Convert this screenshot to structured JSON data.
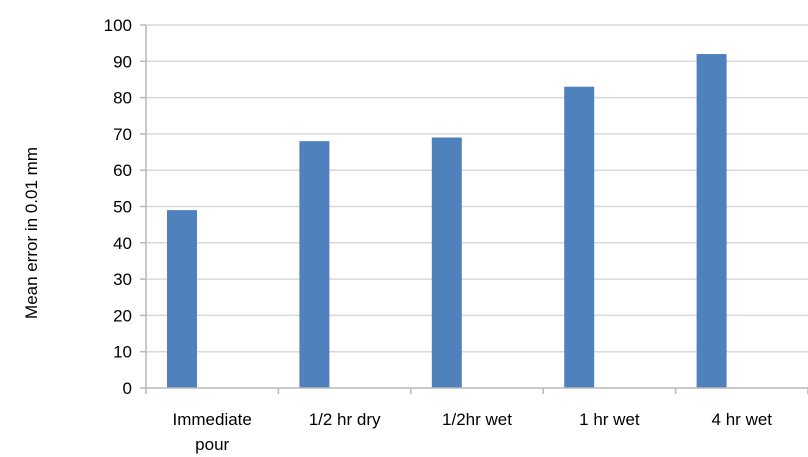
{
  "chart_data": {
    "type": "bar",
    "title": "",
    "xlabel": "",
    "ylabel": "Mean error in 0.01 mm",
    "ylim": [
      0,
      100
    ],
    "yticks": [
      0,
      10,
      20,
      30,
      40,
      50,
      60,
      70,
      80,
      90,
      100
    ],
    "categories": [
      "Immediate pour",
      "1/2 hr dry",
      "1/2hr wet",
      "1 hr wet",
      "4 hr wet"
    ],
    "category_lines": [
      [
        "Immediate",
        "pour"
      ],
      [
        "1/2 hr dry"
      ],
      [
        "1/2hr wet"
      ],
      [
        "1 hr wet"
      ],
      [
        "4 hr wet"
      ]
    ],
    "values": [
      49,
      68,
      69,
      83,
      92
    ],
    "grid": true,
    "legend": "none",
    "bar_color": "#4f81bd"
  }
}
